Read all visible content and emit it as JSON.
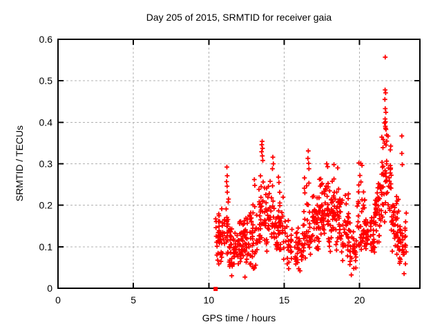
{
  "chart_data": {
    "type": "scatter",
    "title": "Day 205 of 2015, SRMTID for receiver gaia",
    "xlabel": "GPS time / hours",
    "ylabel": "SRMTID / TECUs",
    "xlim": [
      0,
      24
    ],
    "ylim": [
      0,
      0.6
    ],
    "x_ticks": [
      0,
      5,
      10,
      15,
      20
    ],
    "x_tick_labels": [
      "0",
      "5",
      "10",
      "15",
      "20"
    ],
    "y_ticks": [
      0,
      0.1,
      0.2,
      0.3,
      0.4,
      0.5,
      0.6
    ],
    "y_tick_labels": [
      "0",
      "0.1",
      "0.2",
      "0.3",
      "0.4",
      "0.5",
      "0.6"
    ],
    "grid": true,
    "legend": "none",
    "marker": "plus",
    "marker_color": "#ff0000",
    "grid_color": "#b0b0b0",
    "border_color": "#000000",
    "zero_marker": {
      "x": 10.45,
      "y": 0
    },
    "points": [
      [
        21.7,
        0.557
      ],
      [
        21.69,
        0.478
      ],
      [
        21.73,
        0.471
      ],
      [
        21.68,
        0.455
      ],
      [
        21.7,
        0.433
      ],
      [
        21.74,
        0.424
      ],
      [
        21.69,
        0.408
      ],
      [
        21.72,
        0.401
      ],
      [
        21.66,
        0.398
      ],
      [
        21.71,
        0.39
      ],
      [
        21.75,
        0.383
      ],
      [
        22.8,
        0.367
      ],
      [
        22.8,
        0.325
      ],
      [
        22.83,
        0.298
      ],
      [
        13.54,
        0.354
      ],
      [
        13.51,
        0.346
      ],
      [
        13.56,
        0.337
      ],
      [
        13.5,
        0.329
      ],
      [
        13.55,
        0.319
      ],
      [
        13.58,
        0.308
      ],
      [
        16.6,
        0.331
      ],
      [
        16.57,
        0.313
      ],
      [
        16.62,
        0.301
      ],
      [
        16.64,
        0.288
      ],
      [
        11.2,
        0.292
      ],
      [
        11.22,
        0.271
      ],
      [
        11.18,
        0.257
      ],
      [
        11.21,
        0.246
      ],
      [
        14.25,
        0.316
      ],
      [
        14.28,
        0.3
      ],
      [
        14.22,
        0.288
      ],
      [
        19.95,
        0.302
      ],
      [
        20.08,
        0.301
      ],
      [
        20.16,
        0.296
      ],
      [
        17.82,
        0.3
      ],
      [
        17.88,
        0.293
      ],
      [
        18.3,
        0.298
      ],
      [
        18.55,
        0.29
      ],
      [
        14.62,
        0.268
      ],
      [
        14.65,
        0.255
      ],
      [
        13.02,
        0.262
      ],
      [
        13.05,
        0.248
      ],
      [
        12.4,
        0.027
      ],
      [
        11.52,
        0.03
      ],
      [
        19.45,
        0.032
      ],
      [
        22.95,
        0.035
      ],
      [
        16.05,
        0.042
      ]
    ],
    "clusters": [
      {
        "t0": 10.45,
        "t1": 11.0,
        "n": 45,
        "lo": 0.04,
        "hi": 0.21,
        "mode": 0.12
      },
      {
        "t0": 11.0,
        "t1": 11.35,
        "n": 25,
        "lo": 0.08,
        "hi": 0.24,
        "mode": 0.14
      },
      {
        "t0": 11.35,
        "t1": 12.1,
        "n": 55,
        "lo": 0.03,
        "hi": 0.17,
        "mode": 0.09
      },
      {
        "t0": 12.1,
        "t1": 12.7,
        "n": 45,
        "lo": 0.05,
        "hi": 0.185,
        "mode": 0.11
      },
      {
        "t0": 12.7,
        "t1": 13.25,
        "n": 40,
        "lo": 0.04,
        "hi": 0.23,
        "mode": 0.1
      },
      {
        "t0": 13.3,
        "t1": 13.7,
        "n": 30,
        "lo": 0.1,
        "hi": 0.3,
        "mode": 0.16
      },
      {
        "t0": 13.7,
        "t1": 14.35,
        "n": 45,
        "lo": 0.08,
        "hi": 0.28,
        "mode": 0.17
      },
      {
        "t0": 14.35,
        "t1": 15.1,
        "n": 50,
        "lo": 0.06,
        "hi": 0.24,
        "mode": 0.13
      },
      {
        "t0": 15.1,
        "t1": 16.3,
        "n": 60,
        "lo": 0.04,
        "hi": 0.165,
        "mode": 0.1
      },
      {
        "t0": 16.3,
        "t1": 16.75,
        "n": 30,
        "lo": 0.07,
        "hi": 0.28,
        "mode": 0.13
      },
      {
        "t0": 16.75,
        "t1": 17.3,
        "n": 40,
        "lo": 0.08,
        "hi": 0.235,
        "mode": 0.14
      },
      {
        "t0": 17.3,
        "t1": 18.0,
        "n": 60,
        "lo": 0.1,
        "hi": 0.28,
        "mode": 0.175
      },
      {
        "t0": 18.0,
        "t1": 18.7,
        "n": 60,
        "lo": 0.08,
        "hi": 0.285,
        "mode": 0.18
      },
      {
        "t0": 18.7,
        "t1": 19.3,
        "n": 40,
        "lo": 0.05,
        "hi": 0.26,
        "mode": 0.13
      },
      {
        "t0": 19.3,
        "t1": 19.8,
        "n": 30,
        "lo": 0.03,
        "hi": 0.17,
        "mode": 0.1
      },
      {
        "t0": 19.8,
        "t1": 20.35,
        "n": 40,
        "lo": 0.08,
        "hi": 0.28,
        "mode": 0.13
      },
      {
        "t0": 20.35,
        "t1": 21.0,
        "n": 45,
        "lo": 0.07,
        "hi": 0.18,
        "mode": 0.12
      },
      {
        "t0": 21.0,
        "t1": 21.45,
        "n": 40,
        "lo": 0.09,
        "hi": 0.3,
        "mode": 0.17
      },
      {
        "t0": 21.45,
        "t1": 22.1,
        "n": 55,
        "lo": 0.13,
        "hi": 0.4,
        "mode": 0.27
      },
      {
        "t0": 22.1,
        "t1": 22.6,
        "n": 40,
        "lo": 0.07,
        "hi": 0.26,
        "mode": 0.15
      },
      {
        "t0": 22.6,
        "t1": 23.1,
        "n": 35,
        "lo": 0.03,
        "hi": 0.21,
        "mode": 0.11
      }
    ],
    "seed": 11
  }
}
